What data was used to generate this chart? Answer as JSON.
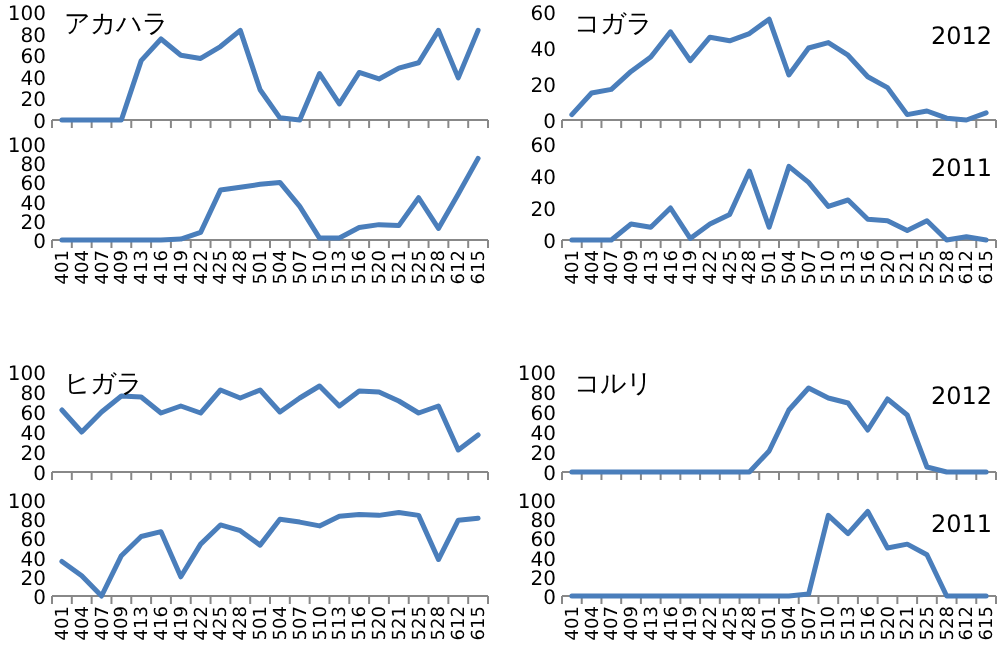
{
  "chart_data": [
    {
      "type": "line",
      "title": "アカハラ",
      "categories": [
        null,
        null,
        null,
        null,
        null,
        null,
        null,
        null,
        null,
        null,
        null,
        null,
        null,
        null,
        null,
        null,
        null,
        null,
        null,
        null,
        null,
        null
      ],
      "tick_labels": "y",
      "ylim": [
        0,
        100
      ],
      "yticks": [
        0,
        20,
        40,
        60,
        80,
        100
      ],
      "series": [
        {
          "color": "#4a7ebb",
          "values": [
            0,
            0,
            0,
            0,
            55,
            75,
            60,
            57,
            68,
            83,
            28,
            2,
            0,
            43,
            15,
            44,
            38,
            48,
            53,
            83,
            39,
            83
          ]
        }
      ]
    },
    {
      "type": "line",
      "title": "コガラ",
      "annotations": [
        "2012"
      ],
      "categories": [
        null,
        null,
        null,
        null,
        null,
        null,
        null,
        null,
        null,
        null,
        null,
        null,
        null,
        null,
        null,
        null,
        null,
        null,
        null,
        null,
        null,
        null
      ],
      "tick_labels": "y",
      "ylim": [
        0,
        60
      ],
      "yticks": [
        0,
        20,
        40,
        60
      ],
      "series": [
        {
          "color": "#4a7ebb",
          "values": [
            3,
            15,
            17,
            27,
            35,
            49,
            33,
            46,
            44,
            48,
            56,
            25,
            40,
            43,
            36,
            24,
            18,
            3,
            5,
            1,
            0,
            4
          ]
        }
      ]
    },
    {
      "type": "line",
      "categories": [
        "401",
        "404",
        "407",
        "409",
        "413",
        "416",
        "419",
        "422",
        "425",
        "428",
        "501",
        "504",
        "507",
        "510",
        "513",
        "516",
        "520",
        "521",
        "525",
        "528",
        "612",
        "615"
      ],
      "ylim": [
        0,
        100
      ],
      "yticks": [
        0,
        20,
        40,
        60,
        80,
        100
      ],
      "series": [
        {
          "color": "#4a7ebb",
          "values": [
            0,
            0,
            0,
            0,
            0,
            0,
            1,
            8,
            52,
            55,
            58,
            60,
            35,
            2,
            2,
            13,
            16,
            15,
            44,
            12,
            48,
            85
          ]
        }
      ]
    },
    {
      "type": "line",
      "annotations": [
        "2011"
      ],
      "categories": [
        "401",
        "404",
        "407",
        "409",
        "413",
        "416",
        "419",
        "422",
        "425",
        "428",
        "501",
        "504",
        "507",
        "510",
        "513",
        "516",
        "520",
        "521",
        "525",
        "528",
        "612",
        "615"
      ],
      "ylim": [
        0,
        60
      ],
      "yticks": [
        0,
        20,
        40,
        60
      ],
      "series": [
        {
          "color": "#4a7ebb",
          "values": [
            0,
            0,
            0,
            10,
            8,
            20,
            1,
            10,
            16,
            43,
            8,
            46,
            36,
            21,
            25,
            13,
            12,
            6,
            12,
            0,
            2,
            0
          ]
        }
      ]
    },
    {
      "type": "line",
      "title": "ヒガラ",
      "categories": [
        null,
        null,
        null,
        null,
        null,
        null,
        null,
        null,
        null,
        null,
        null,
        null,
        null,
        null,
        null,
        null,
        null,
        null,
        null,
        null,
        null,
        null
      ],
      "tick_labels": "y",
      "ylim": [
        0,
        100
      ],
      "yticks": [
        0,
        20,
        40,
        60,
        80,
        100
      ],
      "series": [
        {
          "color": "#4a7ebb",
          "values": [
            62,
            40,
            60,
            76,
            75,
            59,
            66,
            59,
            82,
            74,
            82,
            60,
            74,
            86,
            66,
            81,
            80,
            71,
            59,
            66,
            22,
            37
          ]
        }
      ]
    },
    {
      "type": "line",
      "title": "コルリ",
      "annotations": [
        "2012"
      ],
      "categories": [
        null,
        null,
        null,
        null,
        null,
        null,
        null,
        null,
        null,
        null,
        null,
        null,
        null,
        null,
        null,
        null,
        null,
        null,
        null,
        null,
        null,
        null
      ],
      "tick_labels": "y",
      "ylim": [
        0,
        100
      ],
      "yticks": [
        0,
        20,
        40,
        60,
        80,
        100
      ],
      "series": [
        {
          "color": "#4a7ebb",
          "values": [
            0,
            0,
            0,
            0,
            0,
            0,
            0,
            0,
            0,
            0,
            21,
            62,
            84,
            74,
            69,
            42,
            73,
            57,
            5,
            0,
            0,
            0
          ]
        }
      ]
    },
    {
      "type": "line",
      "categories": [
        "401",
        "404",
        "407",
        "409",
        "413",
        "416",
        "419",
        "422",
        "425",
        "428",
        "501",
        "504",
        "507",
        "510",
        "513",
        "516",
        "520",
        "521",
        "525",
        "528",
        "612",
        "615"
      ],
      "ylim": [
        0,
        100
      ],
      "yticks": [
        0,
        20,
        40,
        60,
        80,
        100
      ],
      "series": [
        {
          "color": "#4a7ebb",
          "values": [
            36,
            21,
            0,
            42,
            62,
            67,
            20,
            54,
            74,
            68,
            53,
            80,
            77,
            73,
            83,
            85,
            84,
            87,
            84,
            38,
            79,
            81
          ]
        }
      ]
    },
    {
      "type": "line",
      "annotations": [
        "2011"
      ],
      "categories": [
        "401",
        "404",
        "407",
        "409",
        "413",
        "416",
        "419",
        "422",
        "425",
        "428",
        "501",
        "504",
        "507",
        "510",
        "513",
        "516",
        "520",
        "521",
        "525",
        "528",
        "612",
        "615"
      ],
      "ylim": [
        0,
        100
      ],
      "yticks": [
        0,
        20,
        40,
        60,
        80,
        100
      ],
      "series": [
        {
          "color": "#4a7ebb",
          "values": [
            0,
            0,
            0,
            0,
            0,
            0,
            0,
            0,
            0,
            0,
            0,
            0,
            2,
            84,
            65,
            88,
            50,
            54,
            43,
            0,
            0,
            0
          ]
        }
      ]
    }
  ]
}
